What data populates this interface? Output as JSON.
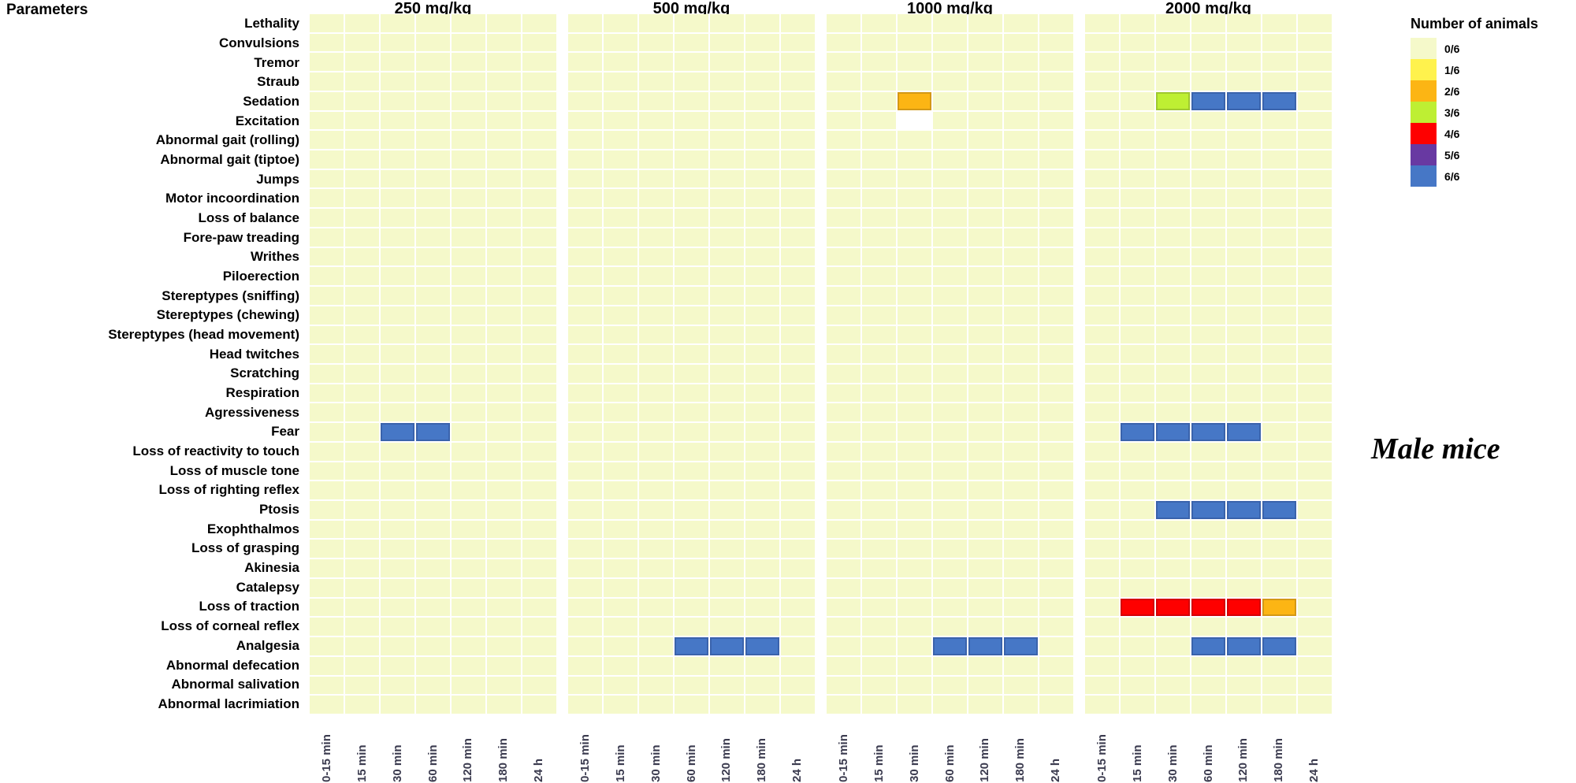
{
  "header": {
    "parameters_label": "Parameters"
  },
  "annotation": {
    "text": "Male mice"
  },
  "legend": {
    "title": "Number of animals",
    "entries": [
      {
        "label": "0/6",
        "color": "#F5F9CA"
      },
      {
        "label": "1/6",
        "color": "#FFF24D"
      },
      {
        "label": "2/6",
        "color": "#FCB514"
      },
      {
        "label": "3/6",
        "color": "#BEEF33"
      },
      {
        "label": "4/6",
        "color": "#FE0000"
      },
      {
        "label": "5/6",
        "color": "#6839A2"
      },
      {
        "label": "6/6",
        "color": "#4677C6"
      }
    ]
  },
  "chart_data": {
    "type": "heatmap",
    "panels": [
      "250 mg/kg",
      "500 mg/kg",
      "1000 mg/kg",
      "2000 mg/kg"
    ],
    "time_labels": [
      "0-15 min",
      "15 min",
      "30 min",
      "60 min",
      "120 min",
      "180 min",
      "24 h"
    ],
    "parameters": [
      "Lethality",
      "Convulsions",
      "Tremor",
      "Straub",
      "Sedation",
      "Excitation",
      "Abnormal gait (rolling)",
      "Abnormal gait (tiptoe)",
      "Jumps",
      "Motor incoordination",
      "Loss of balance",
      "Fore-paw treading",
      "Writhes",
      "Piloerection",
      "Stereptypes (sniffing)",
      "Stereptypes (chewing)",
      "Stereptypes (head movement)",
      "Head twitches",
      "Scratching",
      "Respiration",
      "Agressiveness",
      "Fear",
      "Loss of reactivity to touch",
      "Loss of muscle tone",
      "Loss of righting reflex",
      "Ptosis",
      "Exophthalmos",
      "Loss of grasping",
      "Akinesia",
      "Catalepsy",
      "Loss of traction",
      "Loss of corneal reflex",
      "Analgesia",
      "Abnormal defecation",
      "Abnormal salivation",
      "Abnormal lacrimiation"
    ],
    "default_value": "0/6",
    "blank_color": "#FFFFFF",
    "cells": [
      {
        "panel": "250 mg/kg",
        "parameter": "Fear",
        "times": [
          "30 min",
          "60 min"
        ],
        "value": "6/6"
      },
      {
        "panel": "500 mg/kg",
        "parameter": "Analgesia",
        "times": [
          "60 min",
          "120 min",
          "180 min"
        ],
        "value": "6/6"
      },
      {
        "panel": "1000 mg/kg",
        "parameter": "Sedation",
        "times": [
          "30 min"
        ],
        "value": "2/6"
      },
      {
        "panel": "1000 mg/kg",
        "parameter": "Excitation",
        "times": [
          "30 min"
        ],
        "value": "blank"
      },
      {
        "panel": "1000 mg/kg",
        "parameter": "Analgesia",
        "times": [
          "60 min",
          "120 min",
          "180 min"
        ],
        "value": "6/6"
      },
      {
        "panel": "2000 mg/kg",
        "parameter": "Sedation",
        "times": [
          "30 min"
        ],
        "value": "3/6"
      },
      {
        "panel": "2000 mg/kg",
        "parameter": "Sedation",
        "times": [
          "60 min",
          "120 min",
          "180 min"
        ],
        "value": "6/6"
      },
      {
        "panel": "2000 mg/kg",
        "parameter": "Fear",
        "times": [
          "15 min",
          "30 min",
          "60 min",
          "120 min"
        ],
        "value": "6/6"
      },
      {
        "panel": "2000 mg/kg",
        "parameter": "Ptosis",
        "times": [
          "30 min",
          "60 min",
          "120 min",
          "180 min"
        ],
        "value": "6/6"
      },
      {
        "panel": "2000 mg/kg",
        "parameter": "Loss of traction",
        "times": [
          "15 min",
          "30 min",
          "60 min",
          "120 min"
        ],
        "value": "4/6"
      },
      {
        "panel": "2000 mg/kg",
        "parameter": "Loss of traction",
        "times": [
          "180 min"
        ],
        "value": "2/6"
      },
      {
        "panel": "2000 mg/kg",
        "parameter": "Analgesia",
        "times": [
          "60 min",
          "120 min",
          "180 min"
        ],
        "value": "6/6"
      }
    ]
  }
}
